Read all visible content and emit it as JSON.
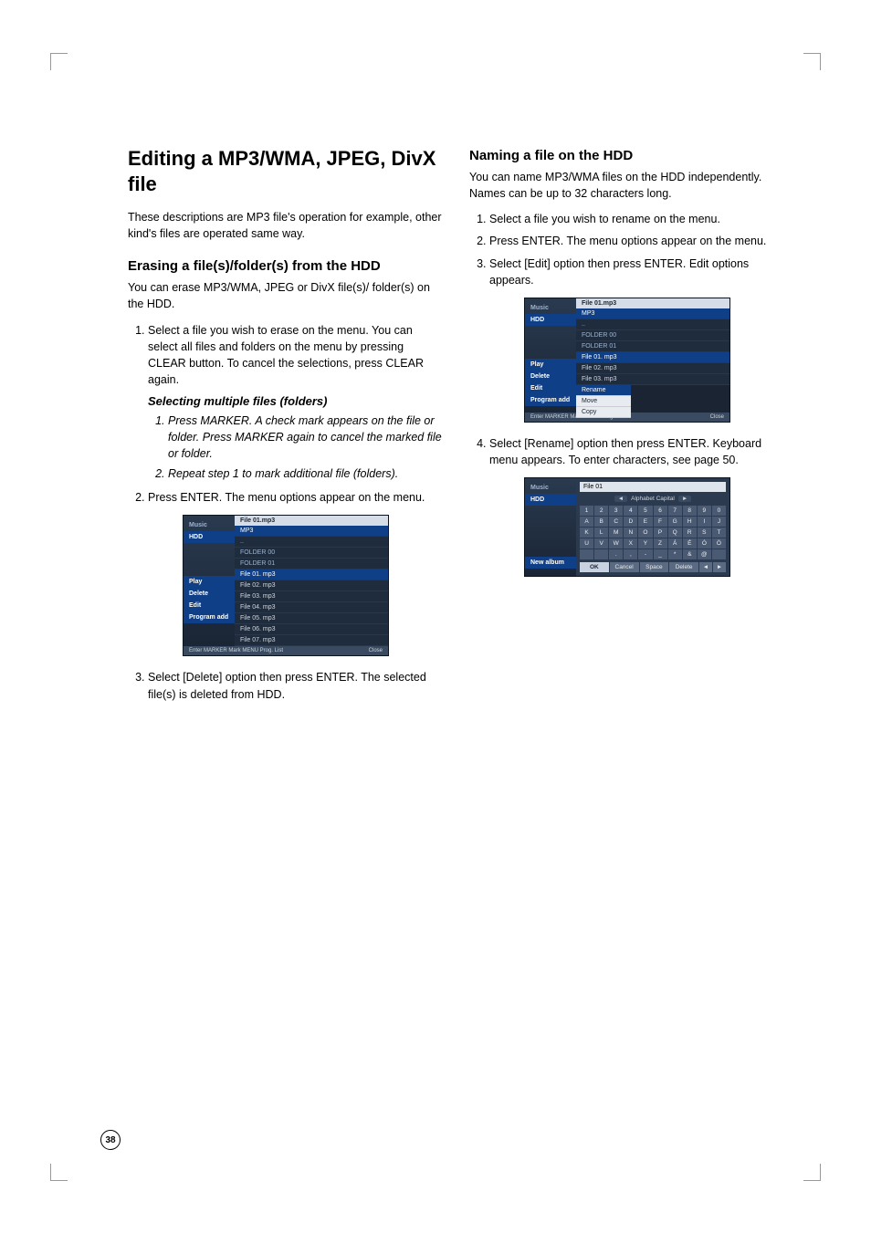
{
  "pageNumber": "38",
  "left": {
    "h1": "Editing a MP3/WMA, JPEG, DivX file",
    "intro": "These descriptions are MP3 file's operation for example, other kind's files are operated same way.",
    "h2": "Erasing a file(s)/folder(s) from the HDD",
    "p1": "You can erase MP3/WMA, JPEG or DivX file(s)/ folder(s) on the HDD.",
    "ol1_1": "Select a file you wish to erase on the menu. You can select all files and folders on the menu by pressing CLEAR button. To cancel the selections, press CLEAR again.",
    "sub_em": "Selecting multiple files (folders)",
    "sub1": "Press MARKER.\nA check mark appears on the file or folder. Press MARKER again to cancel the marked file or folder.",
    "sub2": "Repeat step 1 to mark additional file (folders).",
    "ol1_2": "Press ENTER.\nThe menu options appear on the menu.",
    "ol1_3": "Select [Delete] option then press ENTER. The selected file(s) is deleted from HDD."
  },
  "right": {
    "h2": "Naming a file on the HDD",
    "p1": "You can name MP3/WMA files on the HDD independently. Names can be up to 32 characters long.",
    "ol1": "Select a file you wish to rename on the menu.",
    "ol2": "Press ENTER.\nThe menu options appear on the menu.",
    "ol3": "Select [Edit] option then press ENTER. Edit options appears.",
    "ol4": "Select [Rename] option then press ENTER. Keyboard menu appears.\nTo enter characters, see page 50."
  },
  "shot1": {
    "brand": "Music",
    "source": "HDD",
    "title": "File 01.mp3",
    "tab": "MP3",
    "side": [
      "Play",
      "Delete",
      "Edit",
      "Program add"
    ],
    "rows_folder": [
      "..",
      "FOLDER 00",
      "FOLDER 01"
    ],
    "rows_file": [
      "File 01. mp3",
      "File 02. mp3",
      "File 03. mp3",
      "File 04. mp3",
      "File 05. mp3",
      "File 06. mp3",
      "File 07. mp3"
    ],
    "sel_index": 0,
    "foot_left": "Enter  MARKER Mark  MENU Prog. List",
    "foot_right": "Close"
  },
  "shot2": {
    "brand": "Music",
    "source": "HDD",
    "title": "File 01.mp3",
    "tab": "MP3",
    "side": [
      "Play",
      "Delete",
      "Edit",
      "Program add"
    ],
    "side_sel": 2,
    "rows_folder": [
      "..",
      "FOLDER 00",
      "FOLDER 01"
    ],
    "rows_file": [
      "File 01. mp3",
      "File 02. mp3",
      "File 03. mp3"
    ],
    "sel_index": 0,
    "popup": [
      "Rename",
      "Move",
      "Copy"
    ],
    "popup_sel": 0,
    "foot_left": "Enter  MARKER Mark  MENU Prog. List",
    "foot_right": "Close"
  },
  "shot3": {
    "brand": "Music",
    "source": "HDD",
    "side": "New album",
    "field": "File 01",
    "mode": "Alphabet Capital",
    "keys": [
      "1",
      "2",
      "3",
      "4",
      "5",
      "6",
      "7",
      "8",
      "9",
      "0",
      "A",
      "B",
      "C",
      "D",
      "E",
      "F",
      "G",
      "H",
      "I",
      "J",
      "K",
      "L",
      "M",
      "N",
      "O",
      "P",
      "Q",
      "R",
      "S",
      "T",
      "U",
      "V",
      "W",
      "X",
      "Y",
      "Z",
      "Á",
      "É",
      "Ó",
      "Ö",
      " ",
      " ",
      ".",
      ",",
      "-",
      "_",
      "*",
      "&",
      "@",
      " "
    ],
    "btns": [
      "OK",
      "Cancel",
      "Space",
      "Delete",
      "◄",
      "►"
    ]
  }
}
